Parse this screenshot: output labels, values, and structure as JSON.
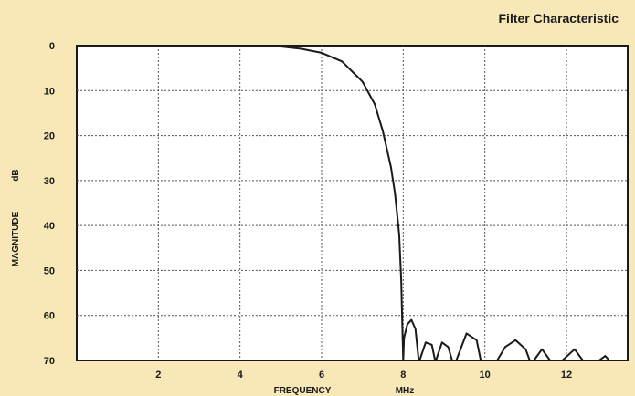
{
  "chart_data": {
    "type": "line",
    "title": "Filter Characteristic",
    "xlabel": "FREQUENCY",
    "xunit": "MHz",
    "ylabel": "MAGNITUDE",
    "yunit": "dB",
    "xlim": [
      0,
      13.5
    ],
    "ylim": [
      0,
      70
    ],
    "y_inverted": true,
    "grid": true,
    "xticks": [
      2,
      4,
      6,
      8,
      10,
      12
    ],
    "yticks": [
      0,
      10,
      20,
      30,
      40,
      50,
      60,
      70
    ],
    "background_color": "#f8e7b7",
    "plot_background_color": "#ffffff",
    "line_color": "#1a1a1a",
    "series": [
      {
        "x": [
          0,
          4.5,
          5,
          5.5,
          6,
          6.5,
          7,
          7.3,
          7.5,
          7.7,
          7.8,
          7.9,
          7.95,
          8.0,
          8.02,
          8.1,
          8.2,
          8.3,
          8.38,
          8.4,
          8.55,
          8.7,
          8.78,
          8.8,
          8.95,
          9.1,
          9.2,
          9.3,
          9.55,
          9.8,
          9.9,
          10.3,
          10.5,
          10.75,
          11.0,
          11.1,
          11.2,
          11.4,
          11.6,
          11.9,
          12.2,
          12.4,
          12.8,
          12.95,
          13.05
        ],
        "y": [
          0,
          0,
          0.2,
          0.7,
          1.6,
          3.5,
          8,
          13,
          19,
          27,
          33,
          42,
          52,
          70,
          65,
          62,
          61,
          63,
          70,
          70,
          66,
          66.5,
          70,
          70,
          66,
          67,
          70,
          70,
          64,
          65.5,
          70,
          70,
          67,
          65.5,
          67.5,
          70,
          70,
          67.5,
          70,
          70,
          67.5,
          70,
          70,
          69,
          70
        ]
      }
    ]
  }
}
